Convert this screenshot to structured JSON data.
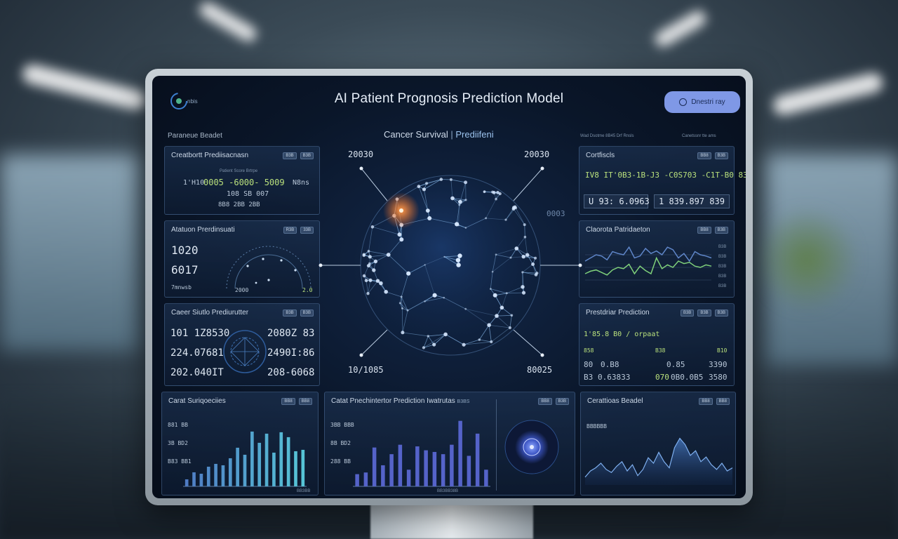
{
  "header": {
    "logo_text": "nbis",
    "title": "AI Patient Prognosis Prediction Model",
    "action_button": "Dnestri ray"
  },
  "labels": {
    "left_section": "Paraneue Beadet",
    "center_subtitle_main": "Cancer Survival",
    "center_subtitle_accent": "Prediifeni",
    "right_section_a": "Wad Dsotme 8B45 Drf Rnsls",
    "right_section_b": "Canetssnr tte ams"
  },
  "panels": {
    "left1": {
      "title": "Creatbortt Prediisacnasn",
      "tags": [
        "B3B",
        "B3B"
      ],
      "caption": "Patient Score Brtrpe",
      "line1": "1'H10",
      "line1_green": "0005 -6000- 5009",
      "line1_end": "N8ns",
      "line2": "108 SB 007",
      "line3": "8B8 2BB 2BB"
    },
    "left2": {
      "title": "Atatuon Prerdinsuati",
      "tags": [
        "R3B",
        "33B"
      ],
      "value1": "1020",
      "value2": "6017",
      "value3": "7mnwsb",
      "axis_label": "2000",
      "green_val": "2.0"
    },
    "left3": {
      "title": "Caeer Siutlo Prediurutter",
      "tags": [
        "B3B",
        "B3B"
      ],
      "l1": "101 1Z8530",
      "l2": "224.07681",
      "l3": "202.040IT",
      "r1": "2080Z 83",
      "r2": "2490I:86",
      "r3": "208-6068"
    },
    "left4": {
      "title": "Carat Suriqoeciies",
      "tags": [
        "BB8",
        "BB8"
      ],
      "y1": "881 BB",
      "y2": "3B BD2",
      "y3": "B83 BB1",
      "x_label": "BB3BB"
    },
    "center4": {
      "title": "Catat Pnechintertor Prediction Iwatrutas",
      "title_end": "B3BS",
      "tags": [
        "BB8",
        "B3B"
      ],
      "y1": "3BB BBB",
      "y2": "8B BD2",
      "y3": "288 BB",
      "x_label": "BB3BB38B"
    },
    "right1": {
      "title": "Cortfiscls",
      "tags": [
        "BB8",
        "B3B"
      ],
      "green_line": "IV8 IT'0B3-1B-J3 -C0S703 -C1T-B0 83",
      "box1": "U 93: 6.0963",
      "box2": "1 839.897 839"
    },
    "right2": {
      "title": "Claorota Patridaeton",
      "tags": [
        "BB8",
        "B3B"
      ],
      "ticks": [
        "B3B",
        "B3B",
        "B3B",
        "B3B",
        "B3B"
      ]
    },
    "right3": {
      "title": "Prestdriar Prediction",
      "tags": [
        "B3B",
        "B3B",
        "B3B"
      ],
      "green_line": "1'85.8 B0 / orpaat",
      "r1a": "858",
      "r1b": "B38",
      "r1c": "B10",
      "r2a": "80",
      "r2b": "0.B8",
      "r2c": "0.85",
      "r2d": "3390",
      "r3a": "B3",
      "r3b": "0.63833",
      "r3c": "070",
      "r3d": "0B0.0B5",
      "r3e": "3580"
    },
    "right4": {
      "title": "Cerattioas Beadel",
      "tags": [
        "BB8",
        "BB8"
      ],
      "y1": "BBBBBB"
    }
  },
  "globe": {
    "tl": "20030",
    "tr": "20030",
    "bl": "10/1085",
    "br": "80025",
    "mid_right": "0003"
  },
  "chart_data": [
    {
      "type": "bar",
      "title": "Carat Suriqoeciies",
      "values": [
        10,
        20,
        18,
        28,
        32,
        30,
        40,
        55,
        45,
        78,
        62,
        75,
        48,
        77,
        70,
        50,
        52
      ]
    },
    {
      "type": "bar",
      "title": "Catat Pnechintertor Prediction Iwatrutas",
      "values": [
        22,
        25,
        70,
        38,
        58,
        75,
        30,
        72,
        65,
        62,
        58,
        75,
        118,
        55,
        95,
        30
      ]
    },
    {
      "type": "line",
      "title": "Claorota Patridaeton",
      "series": [
        {
          "color": "#7fd07a",
          "values": [
            30,
            34,
            36,
            32,
            28,
            36,
            40,
            38,
            45,
            30,
            42,
            35,
            30,
            55,
            38,
            44,
            40,
            50,
            46,
            48,
            42,
            40,
            44,
            42
          ]
        },
        {
          "color": "#5f86c9",
          "values": [
            50,
            55,
            60,
            58,
            52,
            65,
            62,
            60,
            72,
            55,
            58,
            70,
            62,
            66,
            60,
            72,
            68,
            55,
            62,
            50,
            65,
            60,
            58,
            55
          ]
        }
      ]
    },
    {
      "type": "area",
      "title": "Cerattioas Beadel",
      "values": [
        10,
        18,
        22,
        28,
        20,
        16,
        24,
        30,
        18,
        26,
        12,
        20,
        35,
        28,
        42,
        30,
        22,
        48,
        60,
        52,
        38,
        44,
        30,
        36,
        26,
        20,
        28,
        18,
        22
      ]
    }
  ]
}
